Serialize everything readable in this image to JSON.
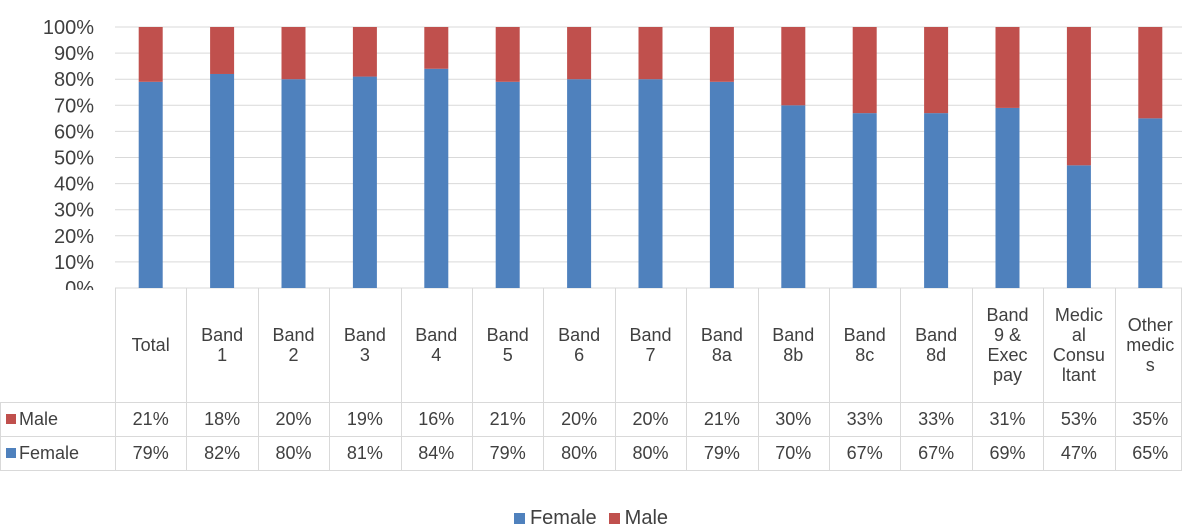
{
  "chart_data": {
    "type": "bar",
    "stacked": true,
    "percent_stacked": true,
    "categories": [
      "Total",
      "Band\n1",
      "Band\n2",
      "Band\n3",
      "Band\n4",
      "Band\n5",
      "Band\n6",
      "Band\n7",
      "Band\n8a",
      "Band\n8b",
      "Band\n8c",
      "Band\n8d",
      "Band\n9 &\nExec\npay",
      "Medic\nal\nConsu\nltant",
      "Other\nmedic\ns"
    ],
    "series": [
      {
        "name": "Female",
        "color": "#4f81bd",
        "values": [
          79,
          82,
          80,
          81,
          84,
          79,
          80,
          80,
          79,
          70,
          67,
          67,
          69,
          47,
          65
        ],
        "labels": [
          "79%",
          "82%",
          "80%",
          "81%",
          "84%",
          "79%",
          "80%",
          "80%",
          "79%",
          "70%",
          "67%",
          "67%",
          "69%",
          "47%",
          "65%"
        ]
      },
      {
        "name": "Male",
        "color": "#c0504d",
        "values": [
          21,
          18,
          20,
          19,
          16,
          21,
          20,
          20,
          21,
          30,
          33,
          33,
          31,
          53,
          35
        ],
        "labels": [
          "21%",
          "18%",
          "20%",
          "19%",
          "16%",
          "21%",
          "20%",
          "20%",
          "21%",
          "30%",
          "33%",
          "33%",
          "31%",
          "53%",
          "35%"
        ]
      }
    ],
    "ylim": [
      0,
      100
    ],
    "yticks": [
      "0%",
      "10%",
      "20%",
      "30%",
      "40%",
      "50%",
      "60%",
      "70%",
      "80%",
      "90%",
      "100%"
    ],
    "grid": true,
    "data_table": true,
    "legend_position": "bottom"
  }
}
